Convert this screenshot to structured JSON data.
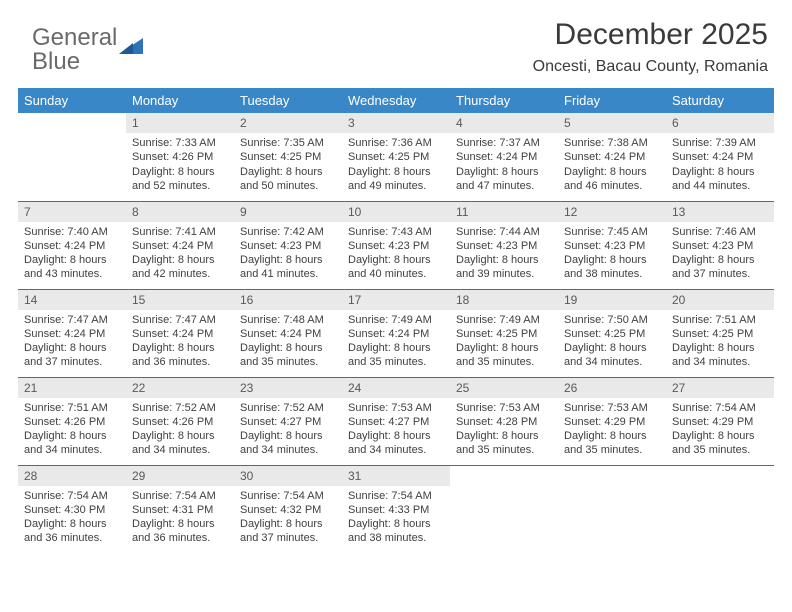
{
  "brand": {
    "part1": "General",
    "part2": "Blue"
  },
  "title": "December 2025",
  "location": "Oncesti, Bacau County, Romania",
  "colors": {
    "header_bg": "#3a87c8",
    "header_fg": "#ffffff",
    "daynum_bg": "#e9e9e9",
    "rule": "#2f72b8",
    "brand_gray": "#6a6a6a",
    "brand_blue": "#2f72b8"
  },
  "weekdays": [
    "Sunday",
    "Monday",
    "Tuesday",
    "Wednesday",
    "Thursday",
    "Friday",
    "Saturday"
  ],
  "weeks": [
    [
      null,
      {
        "n": "1",
        "sunrise": "Sunrise: 7:33 AM",
        "sunset": "Sunset: 4:26 PM",
        "daylight": "Daylight: 8 hours and 52 minutes."
      },
      {
        "n": "2",
        "sunrise": "Sunrise: 7:35 AM",
        "sunset": "Sunset: 4:25 PM",
        "daylight": "Daylight: 8 hours and 50 minutes."
      },
      {
        "n": "3",
        "sunrise": "Sunrise: 7:36 AM",
        "sunset": "Sunset: 4:25 PM",
        "daylight": "Daylight: 8 hours and 49 minutes."
      },
      {
        "n": "4",
        "sunrise": "Sunrise: 7:37 AM",
        "sunset": "Sunset: 4:24 PM",
        "daylight": "Daylight: 8 hours and 47 minutes."
      },
      {
        "n": "5",
        "sunrise": "Sunrise: 7:38 AM",
        "sunset": "Sunset: 4:24 PM",
        "daylight": "Daylight: 8 hours and 46 minutes."
      },
      {
        "n": "6",
        "sunrise": "Sunrise: 7:39 AM",
        "sunset": "Sunset: 4:24 PM",
        "daylight": "Daylight: 8 hours and 44 minutes."
      }
    ],
    [
      {
        "n": "7",
        "sunrise": "Sunrise: 7:40 AM",
        "sunset": "Sunset: 4:24 PM",
        "daylight": "Daylight: 8 hours and 43 minutes."
      },
      {
        "n": "8",
        "sunrise": "Sunrise: 7:41 AM",
        "sunset": "Sunset: 4:24 PM",
        "daylight": "Daylight: 8 hours and 42 minutes."
      },
      {
        "n": "9",
        "sunrise": "Sunrise: 7:42 AM",
        "sunset": "Sunset: 4:23 PM",
        "daylight": "Daylight: 8 hours and 41 minutes."
      },
      {
        "n": "10",
        "sunrise": "Sunrise: 7:43 AM",
        "sunset": "Sunset: 4:23 PM",
        "daylight": "Daylight: 8 hours and 40 minutes."
      },
      {
        "n": "11",
        "sunrise": "Sunrise: 7:44 AM",
        "sunset": "Sunset: 4:23 PM",
        "daylight": "Daylight: 8 hours and 39 minutes."
      },
      {
        "n": "12",
        "sunrise": "Sunrise: 7:45 AM",
        "sunset": "Sunset: 4:23 PM",
        "daylight": "Daylight: 8 hours and 38 minutes."
      },
      {
        "n": "13",
        "sunrise": "Sunrise: 7:46 AM",
        "sunset": "Sunset: 4:23 PM",
        "daylight": "Daylight: 8 hours and 37 minutes."
      }
    ],
    [
      {
        "n": "14",
        "sunrise": "Sunrise: 7:47 AM",
        "sunset": "Sunset: 4:24 PM",
        "daylight": "Daylight: 8 hours and 37 minutes."
      },
      {
        "n": "15",
        "sunrise": "Sunrise: 7:47 AM",
        "sunset": "Sunset: 4:24 PM",
        "daylight": "Daylight: 8 hours and 36 minutes."
      },
      {
        "n": "16",
        "sunrise": "Sunrise: 7:48 AM",
        "sunset": "Sunset: 4:24 PM",
        "daylight": "Daylight: 8 hours and 35 minutes."
      },
      {
        "n": "17",
        "sunrise": "Sunrise: 7:49 AM",
        "sunset": "Sunset: 4:24 PM",
        "daylight": "Daylight: 8 hours and 35 minutes."
      },
      {
        "n": "18",
        "sunrise": "Sunrise: 7:49 AM",
        "sunset": "Sunset: 4:25 PM",
        "daylight": "Daylight: 8 hours and 35 minutes."
      },
      {
        "n": "19",
        "sunrise": "Sunrise: 7:50 AM",
        "sunset": "Sunset: 4:25 PM",
        "daylight": "Daylight: 8 hours and 34 minutes."
      },
      {
        "n": "20",
        "sunrise": "Sunrise: 7:51 AM",
        "sunset": "Sunset: 4:25 PM",
        "daylight": "Daylight: 8 hours and 34 minutes."
      }
    ],
    [
      {
        "n": "21",
        "sunrise": "Sunrise: 7:51 AM",
        "sunset": "Sunset: 4:26 PM",
        "daylight": "Daylight: 8 hours and 34 minutes."
      },
      {
        "n": "22",
        "sunrise": "Sunrise: 7:52 AM",
        "sunset": "Sunset: 4:26 PM",
        "daylight": "Daylight: 8 hours and 34 minutes."
      },
      {
        "n": "23",
        "sunrise": "Sunrise: 7:52 AM",
        "sunset": "Sunset: 4:27 PM",
        "daylight": "Daylight: 8 hours and 34 minutes."
      },
      {
        "n": "24",
        "sunrise": "Sunrise: 7:53 AM",
        "sunset": "Sunset: 4:27 PM",
        "daylight": "Daylight: 8 hours and 34 minutes."
      },
      {
        "n": "25",
        "sunrise": "Sunrise: 7:53 AM",
        "sunset": "Sunset: 4:28 PM",
        "daylight": "Daylight: 8 hours and 35 minutes."
      },
      {
        "n": "26",
        "sunrise": "Sunrise: 7:53 AM",
        "sunset": "Sunset: 4:29 PM",
        "daylight": "Daylight: 8 hours and 35 minutes."
      },
      {
        "n": "27",
        "sunrise": "Sunrise: 7:54 AM",
        "sunset": "Sunset: 4:29 PM",
        "daylight": "Daylight: 8 hours and 35 minutes."
      }
    ],
    [
      {
        "n": "28",
        "sunrise": "Sunrise: 7:54 AM",
        "sunset": "Sunset: 4:30 PM",
        "daylight": "Daylight: 8 hours and 36 minutes."
      },
      {
        "n": "29",
        "sunrise": "Sunrise: 7:54 AM",
        "sunset": "Sunset: 4:31 PM",
        "daylight": "Daylight: 8 hours and 36 minutes."
      },
      {
        "n": "30",
        "sunrise": "Sunrise: 7:54 AM",
        "sunset": "Sunset: 4:32 PM",
        "daylight": "Daylight: 8 hours and 37 minutes."
      },
      {
        "n": "31",
        "sunrise": "Sunrise: 7:54 AM",
        "sunset": "Sunset: 4:33 PM",
        "daylight": "Daylight: 8 hours and 38 minutes."
      },
      null,
      null,
      null
    ]
  ]
}
